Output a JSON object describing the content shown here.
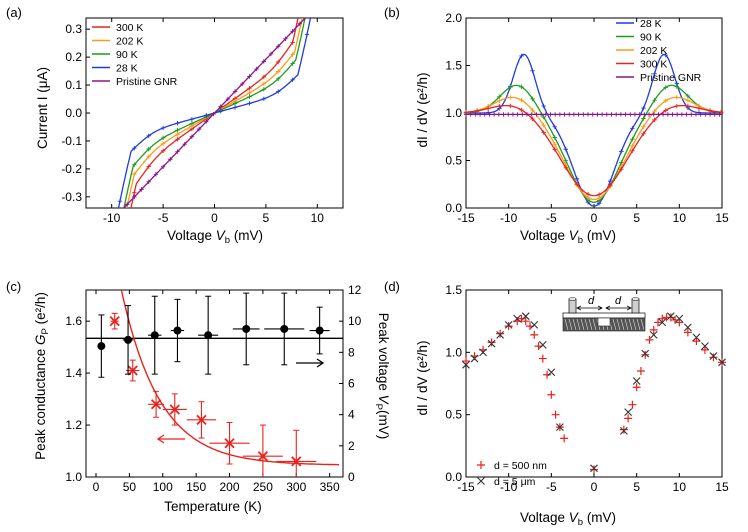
{
  "chart_data": [
    {
      "id": "a",
      "panel_label": "(a)",
      "type": "line",
      "xlabel": "Voltage",
      "xlabel_sym": "V",
      "xlabel_sub": "b",
      "xlabel_unit": " (mV)",
      "ylabel": "Current I (μA)",
      "xlim": [
        -12.5,
        12.5
      ],
      "ylim": [
        -0.34,
        0.34
      ],
      "xticks": [
        -10,
        -5,
        0,
        5,
        10
      ],
      "yticks": [
        -0.3,
        -0.2,
        -0.1,
        0.0,
        0.1,
        0.2,
        0.3
      ],
      "ytick_labels": [
        "-0.3",
        "-0.2",
        "-0.1",
        "0.0",
        "0.1",
        "0.2",
        "0.3"
      ],
      "legend": [
        "300 K",
        "202 K",
        "90 K",
        "28 K",
        "Pristine GNR"
      ],
      "series": [
        {
          "name": "300 K",
          "color": "#e8231c",
          "kind": "iv",
          "params": {
            "k": 0.026,
            "n": 7,
            "vp": 7.6
          }
        },
        {
          "name": "202 K",
          "color": "#ff9a1a",
          "kind": "iv",
          "params": {
            "k": 0.021,
            "n": 7,
            "vp": 7.8
          }
        },
        {
          "name": "90 K",
          "color": "#1f9b1f",
          "kind": "iv",
          "params": {
            "k": 0.017,
            "n": 7,
            "vp": 7.9
          }
        },
        {
          "name": "28 K",
          "color": "#1f3bdc",
          "kind": "iv",
          "params": {
            "k": 0.01,
            "n": 7,
            "vp": 8.1
          }
        },
        {
          "name": "Pristine GNR",
          "color": "#8b138b",
          "kind": "linear",
          "params": {
            "slope": 0.0385
          }
        }
      ]
    },
    {
      "id": "b",
      "panel_label": "(b)",
      "type": "line",
      "xlabel": "Voltage",
      "xlabel_sym": "V",
      "xlabel_sub": "b",
      "xlabel_unit": " (mV)",
      "ylabel": "dI / dV (e²/h)",
      "xlim": [
        -15,
        15
      ],
      "ylim": [
        0,
        2.0
      ],
      "xticks": [
        -15,
        -10,
        -5,
        0,
        5,
        10,
        15
      ],
      "yticks": [
        0.0,
        0.5,
        1.0,
        1.5,
        2.0
      ],
      "ytick_labels": [
        "0.0",
        "0.5",
        "1.0",
        "1.5",
        "2.0"
      ],
      "legend": [
        "28 K",
        "90 K",
        "202 K",
        "300 K",
        "Pristine GNR"
      ],
      "series": [
        {
          "name": "28 K",
          "color": "#1f3bdc",
          "kind": "didv",
          "params": {
            "b": 0.02,
            "a": 1.0,
            "w": 3.4,
            "vp": 8.2,
            "pk": 0.62,
            "pw": 1.8
          }
        },
        {
          "name": "90 K",
          "color": "#1f9b1f",
          "kind": "didv",
          "params": {
            "b": 0.06,
            "a": 1.0,
            "w": 4.2,
            "vp": 9.0,
            "pk": 0.3,
            "pw": 2.8
          }
        },
        {
          "name": "202 K",
          "color": "#ff9a1a",
          "kind": "didv",
          "params": {
            "b": 0.09,
            "a": 1.0,
            "w": 4.7,
            "vp": 9.3,
            "pk": 0.18,
            "pw": 3.2
          }
        },
        {
          "name": "300 K",
          "color": "#e8231c",
          "kind": "didv",
          "params": {
            "b": 0.13,
            "a": 1.0,
            "w": 5.2,
            "vp": 9.5,
            "pk": 0.1,
            "pw": 3.5
          }
        },
        {
          "name": "Pristine GNR",
          "color": "#8b138b",
          "kind": "flat",
          "params": {
            "y": 0.985
          }
        }
      ]
    },
    {
      "id": "c",
      "panel_label": "(c)",
      "type": "scatter",
      "xlabel": "Temperature (K)",
      "ylabel_left": "Peak conductance",
      "ylabel_left_sym": "G",
      "ylabel_left_sub": "P",
      "ylabel_left_unit": " (e²/h)",
      "ylabel_right": "Peak voltage",
      "ylabel_right_sym": "V",
      "ylabel_right_sub": "P",
      "ylabel_right_unit": "(mV)",
      "xlim": [
        -15,
        370
      ],
      "ylim_left": [
        1.0,
        1.72
      ],
      "ylim_right": [
        0,
        12
      ],
      "xticks": [
        0,
        50,
        100,
        150,
        200,
        250,
        300,
        350
      ],
      "yticks_left": [
        1.0,
        1.2,
        1.4,
        1.6
      ],
      "ytick_left_labels": [
        "1.0",
        "1.2",
        "1.4",
        "1.6"
      ],
      "yticks_right": [
        0,
        2,
        4,
        6,
        8,
        10,
        12
      ],
      "red_points": {
        "x": [
          28,
          55,
          90,
          118,
          158,
          200,
          250,
          300
        ],
        "y": [
          1.6,
          1.41,
          1.28,
          1.26,
          1.22,
          1.13,
          1.08,
          1.06
        ],
        "xerr": [
          6,
          10,
          12,
          18,
          22,
          30,
          30,
          30
        ],
        "yerr": [
          0.03,
          0.04,
          0.05,
          0.06,
          0.07,
          0.08,
          0.12,
          0.12
        ]
      },
      "red_fit": {
        "a": 1.045,
        "b": 1.3,
        "tau": 58
      },
      "black_points": {
        "x": [
          8,
          48,
          88,
          122,
          168,
          225,
          282,
          335
        ],
        "y": [
          8.4,
          8.8,
          9.1,
          9.4,
          9.1,
          9.5,
          9.5,
          9.4
        ],
        "xerr": [
          4,
          8,
          10,
          10,
          15,
          20,
          30,
          15
        ],
        "yerr": [
          2.0,
          2.2,
          2.5,
          2.0,
          2.5,
          2.3,
          2.3,
          1.5
        ]
      },
      "black_line": 8.9,
      "colors": {
        "red": "#e8231c",
        "black": "#000000"
      }
    },
    {
      "id": "d",
      "panel_label": "(d)",
      "type": "scatter",
      "xlabel": "Voltage",
      "xlabel_sym": "V",
      "xlabel_sub": "b",
      "xlabel_unit": " (mV)",
      "ylabel": "dI / dV (e²/h)",
      "xlim": [
        -15,
        15
      ],
      "ylim": [
        0,
        1.5
      ],
      "xticks": [
        -15,
        -10,
        -5,
        0,
        5,
        10,
        15
      ],
      "yticks": [
        0.0,
        0.5,
        1.0,
        1.5
      ],
      "ytick_labels": [
        "0.0",
        "0.5",
        "1.0",
        "1.5"
      ],
      "inset_label": "d",
      "legend": [
        "d = 500 nm",
        "d = 5 μm"
      ],
      "series": [
        {
          "name": "d = 500 nm",
          "color": "#e8231c",
          "marker": "+",
          "x": [
            -15,
            -14,
            -13,
            -12,
            -11,
            -10,
            -9,
            -8.5,
            -8,
            -7.5,
            -7,
            -6.5,
            -6,
            -5.5,
            -5,
            -4.5,
            -4,
            -3.5,
            0,
            3.5,
            4,
            4.5,
            5,
            5.5,
            6,
            6.5,
            7,
            7.5,
            8,
            8.5,
            9,
            9.5,
            10,
            11,
            12,
            13,
            14,
            15
          ],
          "y": [
            0.93,
            0.97,
            1.02,
            1.08,
            1.15,
            1.21,
            1.25,
            1.27,
            1.25,
            1.21,
            1.14,
            1.05,
            0.95,
            0.82,
            0.66,
            0.5,
            0.4,
            0.31,
            0.06,
            0.38,
            0.47,
            0.58,
            0.72,
            0.85,
            0.98,
            1.1,
            1.18,
            1.24,
            1.27,
            1.28,
            1.28,
            1.26,
            1.24,
            1.16,
            1.09,
            1.02,
            0.96,
            0.92
          ]
        },
        {
          "name": "d = 5 μm",
          "color": "#333333",
          "marker": "x",
          "x": [
            -15,
            -14,
            -13,
            -12,
            -11,
            -10,
            -9,
            -8,
            -7,
            -6,
            -5,
            -4,
            0,
            3.5,
            4,
            5,
            6,
            7,
            8,
            9,
            10,
            11,
            12,
            13,
            14,
            15
          ],
          "y": [
            0.9,
            0.95,
            1.0,
            1.07,
            1.14,
            1.22,
            1.27,
            1.29,
            1.22,
            1.06,
            0.84,
            0.4,
            0.07,
            0.37,
            0.52,
            0.77,
            0.99,
            1.14,
            1.24,
            1.29,
            1.27,
            1.2,
            1.12,
            1.05,
            0.97,
            0.92
          ]
        }
      ]
    }
  ]
}
